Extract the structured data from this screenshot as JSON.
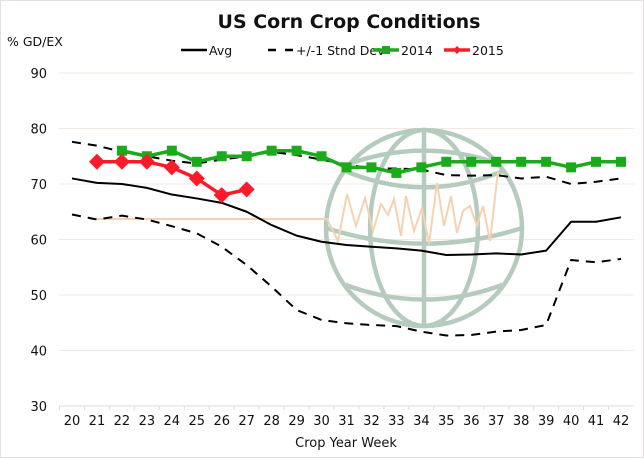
{
  "chart_data": {
    "type": "line",
    "title": "US Corn Crop Conditions",
    "xlabel": "Crop Year Week",
    "ylabel": "% GD/EX",
    "ylim": [
      30,
      90
    ],
    "yticks": [
      30,
      40,
      50,
      60,
      70,
      80,
      90
    ],
    "xlim": [
      20,
      42
    ],
    "x": [
      20,
      21,
      22,
      23,
      24,
      25,
      26,
      27,
      28,
      29,
      30,
      31,
      32,
      33,
      34,
      35,
      36,
      37,
      38,
      39,
      40,
      41,
      42
    ],
    "grid": true,
    "legend_position": "top",
    "legend": [
      "Avg",
      "+/-1 Stnd Dev",
      "2014",
      "2015"
    ],
    "series": [
      {
        "name": "Avg",
        "color": "#000000",
        "style": "solid",
        "values": [
          71.0,
          70.2,
          70.0,
          69.3,
          68.1,
          67.4,
          66.6,
          65.0,
          62.6,
          60.7,
          59.6,
          59.0,
          58.7,
          58.4,
          58.0,
          57.2,
          57.3,
          57.5,
          57.3,
          58.0,
          63.2,
          63.2,
          64.0
        ]
      },
      {
        "name": "+1 Stnd Dev",
        "legend_name": "+/-1 Stnd Dev",
        "color": "#000000",
        "style": "dashed",
        "values": [
          77.6,
          76.9,
          75.8,
          75.0,
          74.2,
          73.7,
          74.4,
          75.0,
          75.8,
          75.2,
          74.4,
          73.5,
          72.8,
          72.8,
          72.6,
          71.6,
          71.5,
          71.6,
          71.0,
          71.3,
          70.0,
          70.4,
          71.0
        ]
      },
      {
        "name": "-1 Stnd Dev",
        "legend_name": "+/-1 Stnd Dev",
        "color": "#000000",
        "style": "dashed",
        "values": [
          64.5,
          63.6,
          64.3,
          63.6,
          62.4,
          61.1,
          58.7,
          55.4,
          51.5,
          47.3,
          45.5,
          44.9,
          44.6,
          44.4,
          43.4,
          42.7,
          42.8,
          43.4,
          43.7,
          44.6,
          56.3,
          55.9,
          56.5
        ]
      },
      {
        "name": "2014",
        "color": "#1aaa1a",
        "marker": "square",
        "values": [
          null,
          null,
          76,
          75,
          76,
          74,
          75,
          75,
          76,
          76,
          75,
          73,
          73,
          72,
          73,
          74,
          74,
          74,
          74,
          74,
          73,
          74,
          74
        ]
      },
      {
        "name": "2015",
        "color": "#ff1a2a",
        "marker": "diamond",
        "values": [
          null,
          74,
          74,
          74,
          73,
          71,
          68,
          69,
          null,
          null,
          null,
          null,
          null,
          null,
          null,
          null,
          null,
          null,
          null,
          null,
          null,
          null,
          null
        ]
      }
    ]
  },
  "watermark": {
    "icon": "globe-with-zigzag-icon",
    "globe_color": "#b5cbbd",
    "zigzag_color": "#f6d2b2"
  }
}
